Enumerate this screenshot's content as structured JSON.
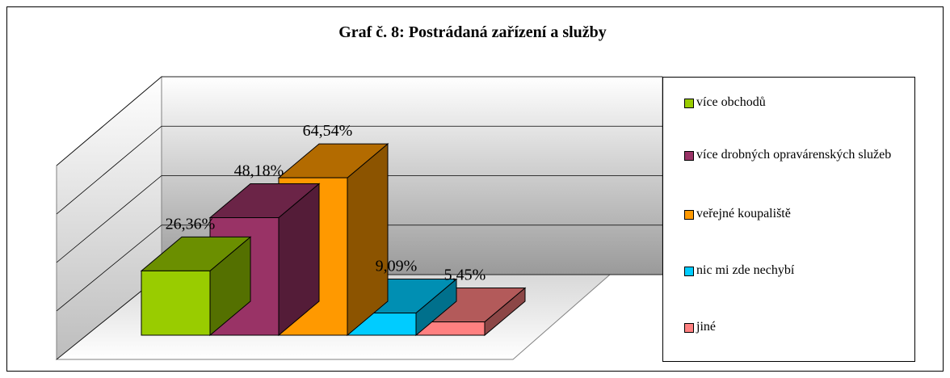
{
  "chart_data": {
    "type": "bar3d",
    "title": "Graf č. 8: Postrádaná zařízení a služby",
    "ylim": [
      0,
      80
    ],
    "yticks": [
      0,
      20,
      40,
      60,
      80
    ],
    "grid": true,
    "legend": "right",
    "series": [
      {
        "name": "více obchodů",
        "color": "#99cc00",
        "values": [
          26.36
        ],
        "value_labels": [
          "26,36%"
        ]
      },
      {
        "name": "více drobných opravárenských služeb",
        "color": "#993366",
        "values": [
          48.18
        ],
        "value_labels": [
          "48,18%"
        ]
      },
      {
        "name": "veřejné koupaliště",
        "color": "#ff9900",
        "values": [
          64.54
        ],
        "value_labels": [
          "64,54%"
        ]
      },
      {
        "name": "nic mi zde nechybí",
        "color": "#00ccff",
        "values": [
          9.09
        ],
        "value_labels": [
          "9,09%"
        ]
      },
      {
        "name": "jiné",
        "color": "#ff8080",
        "values": [
          5.45
        ],
        "value_labels": [
          "5,45%"
        ]
      }
    ]
  }
}
